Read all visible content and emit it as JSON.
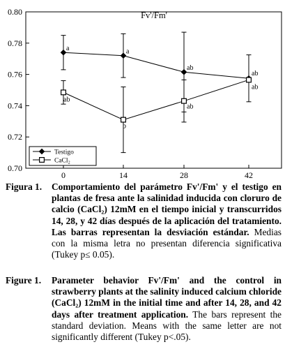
{
  "chart_data": {
    "type": "line",
    "title": "Fv'/Fm'",
    "xlabel": "",
    "ylabel": "",
    "x": [
      0,
      14,
      28,
      42
    ],
    "x_ticks": [
      "0",
      "14",
      "28",
      "42"
    ],
    "y_ticks": [
      "0.70",
      "0.72",
      "0.74",
      "0.76",
      "0.78",
      "0.80"
    ],
    "ylim": [
      0.7,
      0.8
    ],
    "grid": false,
    "legend_position": "bottom-left",
    "series": [
      {
        "name": "Testigo",
        "marker": "filled-diamond",
        "values": [
          0.774,
          0.772,
          0.7615,
          0.7575
        ],
        "errors": [
          0.011,
          0.014,
          0.0255,
          0.015
        ],
        "labels": [
          "a",
          "a",
          "ab",
          "ab"
        ]
      },
      {
        "name": "CaCl₂",
        "marker": "open-square",
        "values": [
          0.7485,
          0.731,
          0.743,
          0.7565
        ],
        "errors": [
          0.0075,
          0.021,
          0.0135,
          0.0005
        ],
        "labels": [
          "ab",
          "b",
          "ab",
          "ab"
        ]
      }
    ]
  },
  "caption_es": {
    "label": "Figura 1.",
    "bold": "Comportamiento del parámetro Fv'/Fm' y el testigo en plantas de fresa ante la salinidad inducida con cloruro de calcio (CaCl₂) 12mM en el tiempo inicial y transcurridos 14, 28, y 42 días después de la aplicación del tratamiento. Las barras representan la desviación estándar.",
    "plain": "Medias con la misma letra no presentan diferencia significativa (Tukey p≤ 0.05)."
  },
  "caption_en": {
    "label": "Figure 1.",
    "bold": "Parameter behavior Fv'/Fm' and the control in strawberry plants at the salinity induced calcium chloride (CaCl₂) 12mM in the initial time and after 14, 28, and 42 days after treatment application.",
    "plain": "The bars represent the standard deviation. Means with the same letter are not significantly different (Tukey p<.05)."
  }
}
